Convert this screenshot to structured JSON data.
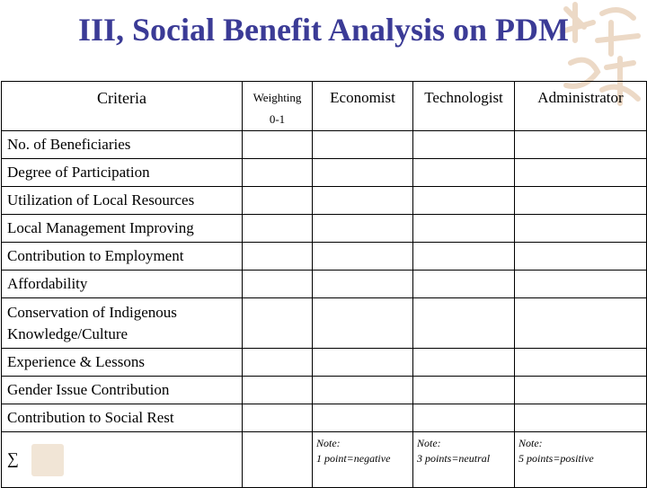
{
  "title": "III, Social Benefit Analysis on PDM",
  "header": {
    "criteria": "Criteria",
    "weighting_line1": "Weighting",
    "weighting_line2": "0-1",
    "economist": "Economist",
    "technologist": "Technologist",
    "administrator": "Administrator"
  },
  "criteria_rows": [
    "No. of Beneficiaries",
    "Degree of Participation",
    "Utilization of Local Resources",
    "Local Management Improving",
    "Contribution to Employment",
    "Affordability",
    "Conservation of Indigenous Knowledge/Culture",
    "Experience & Lessons",
    "Gender Issue Contribution",
    "Contribution to Social Rest"
  ],
  "sum_symbol": "∑",
  "notes": [
    {
      "label": "Note:",
      "text": "1 point=negative"
    },
    {
      "label": "Note:",
      "text": "3 points=neutral"
    },
    {
      "label": "Note:",
      "text": "5 points=positive"
    }
  ]
}
